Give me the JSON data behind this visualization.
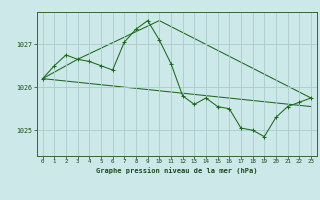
{
  "title": "Graphe pression niveau de la mer (hPa)",
  "bg_color": "#cce8e8",
  "grid_color": "#aacccc",
  "line_color": "#1a6b1a",
  "tick_color": "#1a4a1a",
  "x_ticks": [
    0,
    1,
    2,
    3,
    4,
    5,
    6,
    7,
    8,
    9,
    10,
    11,
    12,
    13,
    14,
    15,
    16,
    17,
    18,
    19,
    20,
    21,
    22,
    23
  ],
  "y_ticks": [
    1025,
    1026,
    1027
  ],
  "ylim": [
    1024.4,
    1027.75
  ],
  "xlim": [
    -0.5,
    23.5
  ],
  "series_main": {
    "x": [
      0,
      1,
      2,
      3,
      4,
      5,
      6,
      7,
      8,
      9,
      10,
      11,
      12,
      13,
      14,
      15,
      16,
      17,
      18,
      19,
      20,
      21,
      22,
      23
    ],
    "y": [
      1026.2,
      1026.5,
      1026.75,
      1026.65,
      1026.6,
      1026.5,
      1026.4,
      1027.05,
      1027.35,
      1027.55,
      1027.1,
      1026.55,
      1025.8,
      1025.6,
      1025.75,
      1025.55,
      1025.5,
      1025.05,
      1025.0,
      1024.85,
      1025.3,
      1025.55,
      1025.65,
      1025.75
    ]
  },
  "series_lines": [
    {
      "x": [
        0,
        3,
        10,
        23
      ],
      "y": [
        1026.2,
        1026.65,
        1027.55,
        1025.75
      ]
    },
    {
      "x": [
        0,
        23
      ],
      "y": [
        1026.2,
        1025.55
      ]
    }
  ]
}
